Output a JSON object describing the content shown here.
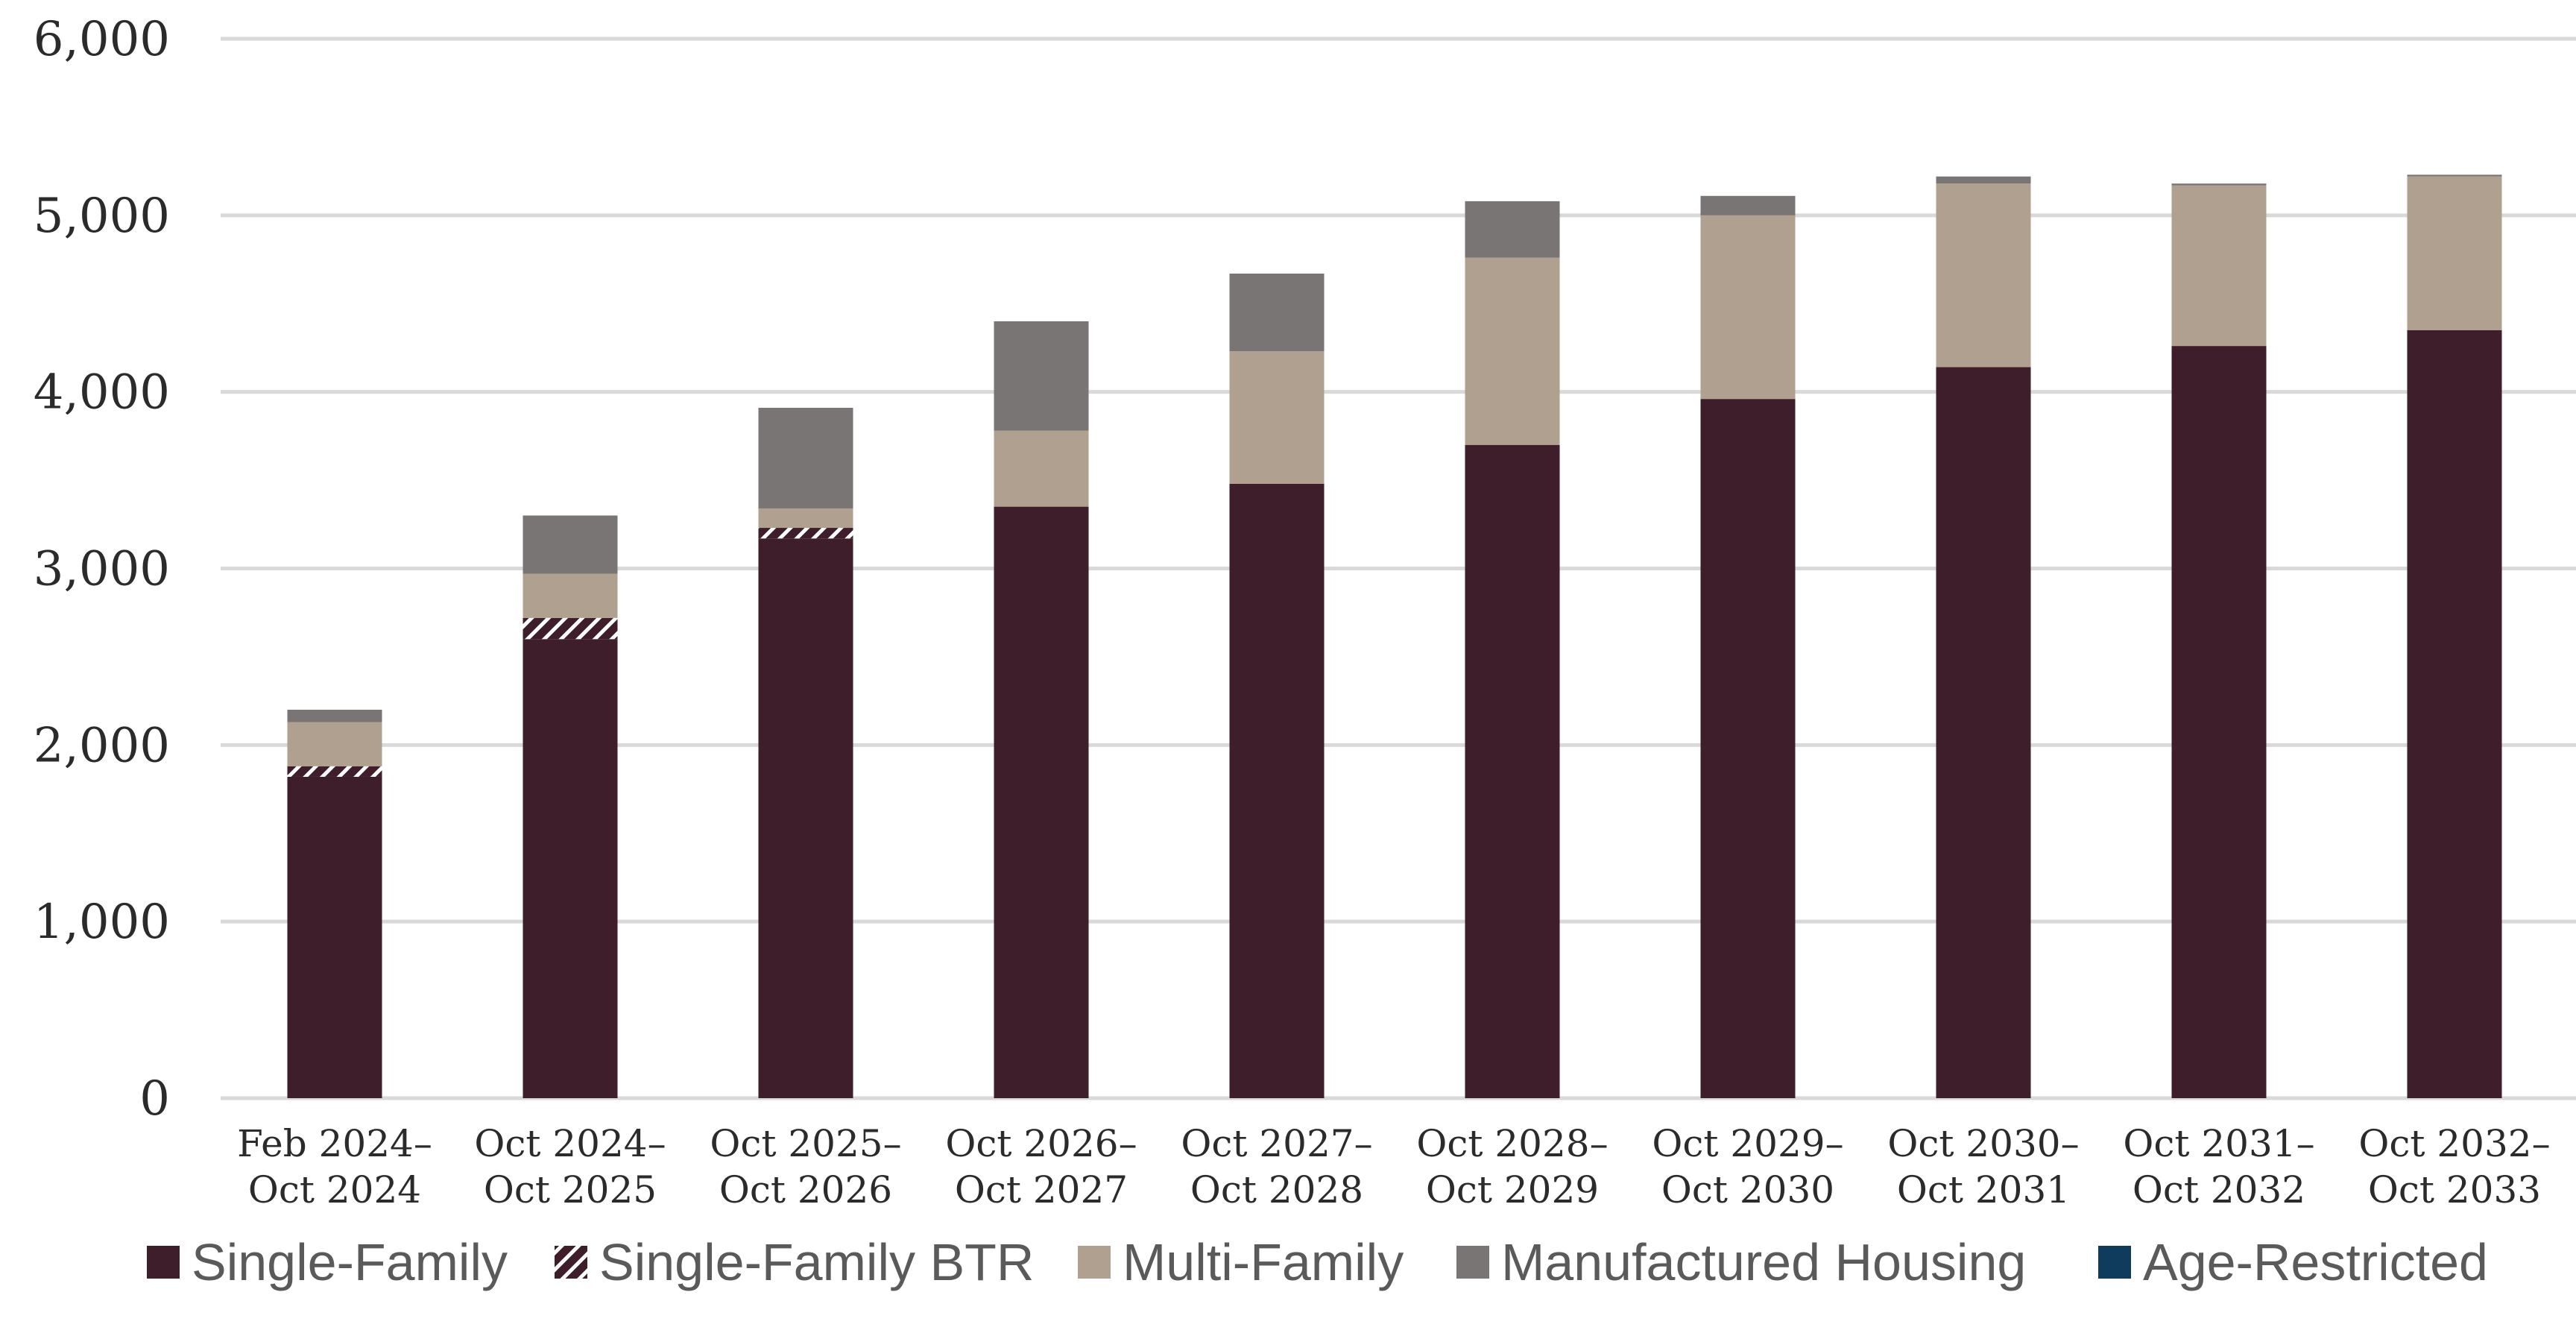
{
  "chart_data": {
    "type": "bar",
    "stacked": true,
    "title": "",
    "xlabel": "",
    "ylabel": "",
    "ylim": [
      0,
      6000
    ],
    "yticks": [
      0,
      1000,
      2000,
      3000,
      4000,
      5000,
      6000
    ],
    "ytick_labels": [
      "0",
      "1,000",
      "2,000",
      "3,000",
      "4,000",
      "5,000",
      "6,000"
    ],
    "grid": "horizontal",
    "legend_position": "bottom",
    "categories": [
      [
        "Feb 2024–",
        "Oct 2024"
      ],
      [
        "Oct 2024–",
        "Oct 2025"
      ],
      [
        "Oct 2025–",
        "Oct 2026"
      ],
      [
        "Oct 2026–",
        "Oct 2027"
      ],
      [
        "Oct 2027–",
        "Oct 2028"
      ],
      [
        "Oct 2028–",
        "Oct 2029"
      ],
      [
        "Oct 2029–",
        "Oct 2030"
      ],
      [
        "Oct 2030–",
        "Oct 2031"
      ],
      [
        "Oct 2031–",
        "Oct 2032"
      ],
      [
        "Oct 2032–",
        "Oct 2033"
      ]
    ],
    "series": [
      {
        "name": "Single-Family",
        "color": "#3f1e2b",
        "pattern": "solid",
        "values": [
          1820,
          2600,
          3170,
          3350,
          3480,
          3700,
          3960,
          4140,
          4260,
          4350
        ]
      },
      {
        "name": "Single-Family BTR",
        "color": "#3f1e2b",
        "pattern": "hatched",
        "values": [
          60,
          120,
          60,
          0,
          0,
          0,
          0,
          0,
          0,
          0
        ]
      },
      {
        "name": "Multi-Family",
        "color": "#b0a090",
        "pattern": "solid",
        "values": [
          250,
          250,
          110,
          430,
          750,
          1060,
          1040,
          1040,
          910,
          870
        ]
      },
      {
        "name": "Manufactured Housing",
        "color": "#7a7575",
        "pattern": "solid",
        "values": [
          70,
          330,
          570,
          620,
          440,
          320,
          110,
          40,
          10,
          10
        ]
      },
      {
        "name": "Age-Restricted",
        "color": "#0f3b5c",
        "pattern": "solid",
        "values": [
          0,
          0,
          0,
          0,
          0,
          0,
          0,
          0,
          0,
          0
        ]
      }
    ]
  }
}
